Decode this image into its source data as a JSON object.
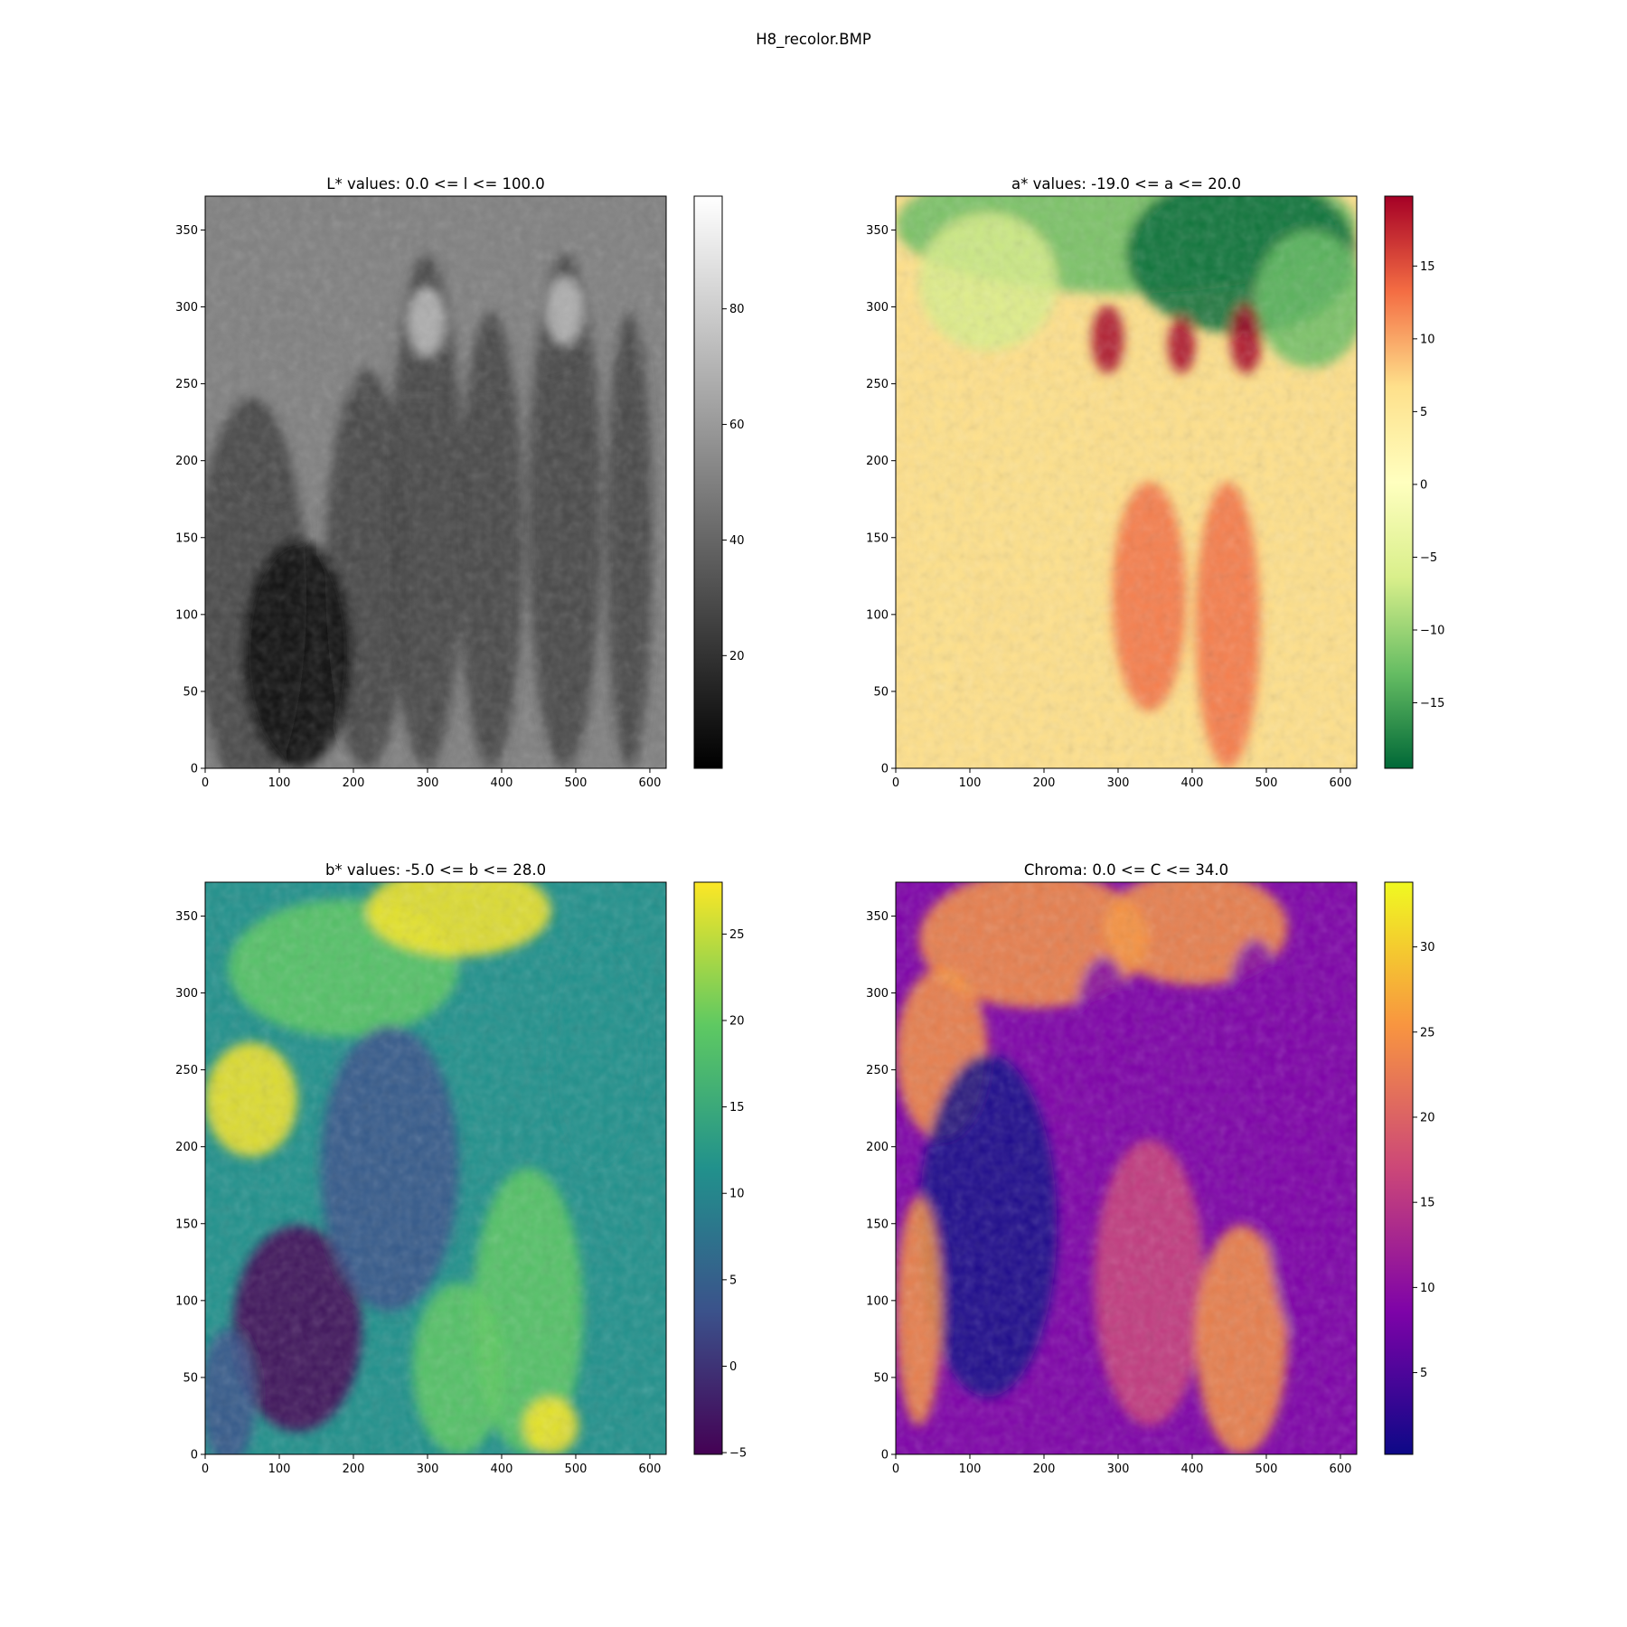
{
  "figure": {
    "title": "H8_recolor.BMP"
  },
  "chart_data": [
    {
      "type": "heatmap",
      "title": "L* values: 0.0 <= l <= 100.0",
      "xlabel": "",
      "ylabel": "",
      "x_ticks": [
        0,
        100,
        200,
        300,
        400,
        500,
        600
      ],
      "y_ticks": [
        0,
        50,
        100,
        150,
        200,
        250,
        300,
        350
      ],
      "xlim": [
        0,
        622
      ],
      "ylim": [
        0,
        372
      ],
      "colormap": "gray",
      "colorbar": {
        "ticks": [
          20,
          40,
          60,
          80
        ],
        "range": [
          0.5,
          99.5
        ]
      }
    },
    {
      "type": "heatmap",
      "title": "a* values: -19.0 <= a <= 20.0",
      "xlabel": "",
      "ylabel": "",
      "x_ticks": [
        0,
        100,
        200,
        300,
        400,
        500,
        600
      ],
      "y_ticks": [
        0,
        50,
        100,
        150,
        200,
        250,
        300,
        350
      ],
      "xlim": [
        0,
        622
      ],
      "ylim": [
        0,
        372
      ],
      "colormap": "RdYlGn_r",
      "colorbar": {
        "ticks": [
          -15,
          -10,
          -5,
          0,
          5,
          10,
          15
        ],
        "range": [
          -19.5,
          19.8
        ]
      }
    },
    {
      "type": "heatmap",
      "title": "b* values: -5.0 <= b <= 28.0",
      "xlabel": "",
      "ylabel": "",
      "x_ticks": [
        0,
        100,
        200,
        300,
        400,
        500,
        600
      ],
      "y_ticks": [
        0,
        50,
        100,
        150,
        200,
        250,
        300,
        350
      ],
      "xlim": [
        0,
        622
      ],
      "ylim": [
        0,
        372
      ],
      "colormap": "viridis",
      "colorbar": {
        "ticks": [
          -5,
          0,
          5,
          10,
          15,
          20,
          25
        ],
        "range": [
          -5.1,
          28
        ]
      }
    },
    {
      "type": "heatmap",
      "title": "Chroma: 0.0 <= C <= 34.0",
      "xlabel": "",
      "ylabel": "",
      "x_ticks": [
        0,
        100,
        200,
        300,
        400,
        500,
        600
      ],
      "y_ticks": [
        0,
        50,
        100,
        150,
        200,
        250,
        300,
        350
      ],
      "xlim": [
        0,
        622
      ],
      "ylim": [
        0,
        372
      ],
      "colormap": "plasma",
      "colorbar": {
        "ticks": [
          5,
          10,
          15,
          20,
          25,
          30
        ],
        "range": [
          0.2,
          33.8
        ]
      }
    }
  ]
}
